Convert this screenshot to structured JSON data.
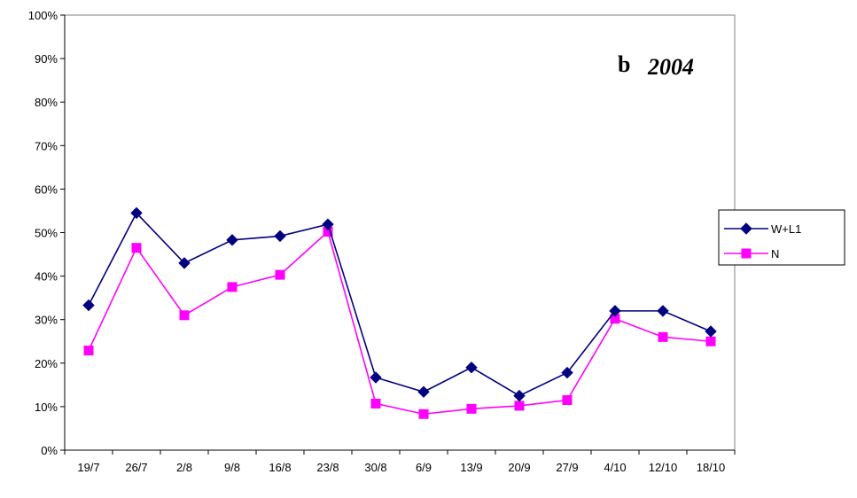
{
  "chart_data": {
    "type": "line",
    "panel_label": "b",
    "title": "2004",
    "xlabel": "",
    "ylabel": "",
    "categories": [
      "19/7",
      "26/7",
      "2/8",
      "9/8",
      "16/8",
      "23/8",
      "30/8",
      "6/9",
      "13/9",
      "20/9",
      "27/9",
      "4/10",
      "12/10",
      "18/10"
    ],
    "ylim": [
      0,
      1
    ],
    "yticks": [
      "0%",
      "10%",
      "20%",
      "30%",
      "40%",
      "50%",
      "60%",
      "70%",
      "80%",
      "90%",
      "100%"
    ],
    "grid": false,
    "legend_position": "right",
    "series": [
      {
        "name": "W+L1",
        "color": "#000080",
        "marker": "diamond",
        "values": [
          0.333,
          0.545,
          0.43,
          0.483,
          0.492,
          0.519,
          0.167,
          0.134,
          0.19,
          0.125,
          0.178,
          0.32,
          0.32,
          0.273
        ]
      },
      {
        "name": "N",
        "color": "#ff00ff",
        "marker": "square",
        "values": [
          0.229,
          0.465,
          0.31,
          0.375,
          0.403,
          0.502,
          0.107,
          0.083,
          0.095,
          0.102,
          0.115,
          0.302,
          0.26,
          0.25
        ]
      }
    ]
  }
}
